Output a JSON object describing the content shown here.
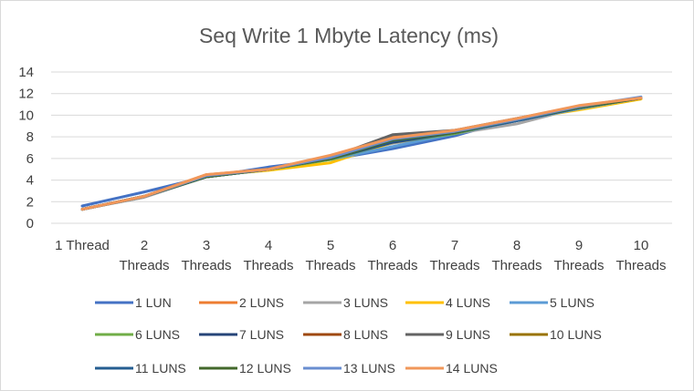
{
  "chart_data": {
    "type": "line",
    "title": "Seq Write 1 Mbyte Latency (ms)",
    "xlabel": "",
    "ylabel": "",
    "ylim": [
      0,
      14
    ],
    "yticks": [
      0,
      2,
      4,
      6,
      8,
      10,
      12,
      14
    ],
    "grid": true,
    "legend_position": "bottom",
    "categories": [
      [
        "1 Thread"
      ],
      [
        "2",
        "Threads"
      ],
      [
        "3",
        "Threads"
      ],
      [
        "4",
        "Threads"
      ],
      [
        "5",
        "Threads"
      ],
      [
        "6",
        "Threads"
      ],
      [
        "7",
        "Threads"
      ],
      [
        "8",
        "Threads"
      ],
      [
        "9",
        "Threads"
      ],
      [
        "10",
        "Threads"
      ]
    ],
    "series": [
      {
        "name": "1 LUN",
        "color": "#4472C4",
        "values": [
          1.6,
          2.9,
          4.3,
          5.2,
          5.9,
          6.9,
          8.1,
          9.7,
          10.8,
          11.6
        ]
      },
      {
        "name": "2 LUNS",
        "color": "#ED7D31",
        "values": [
          1.3,
          2.5,
          4.5,
          5.0,
          6.2,
          8.0,
          8.6,
          9.6,
          10.8,
          11.6
        ]
      },
      {
        "name": "3 LUNS",
        "color": "#A5A5A5",
        "values": [
          1.3,
          2.4,
          4.3,
          5.0,
          6.0,
          7.4,
          8.3,
          9.2,
          10.7,
          11.6
        ]
      },
      {
        "name": "4 LUNS",
        "color": "#FFC000",
        "values": [
          1.3,
          2.5,
          4.4,
          4.9,
          5.6,
          7.5,
          8.4,
          9.6,
          10.5,
          11.5
        ]
      },
      {
        "name": "5 LUNS",
        "color": "#5B9BD5",
        "values": [
          1.3,
          2.5,
          4.3,
          5.0,
          5.9,
          7.1,
          8.3,
          9.5,
          10.6,
          11.6
        ]
      },
      {
        "name": "6 LUNS",
        "color": "#70AD47",
        "values": [
          1.3,
          2.5,
          4.3,
          5.0,
          5.9,
          7.5,
          8.3,
          9.6,
          10.7,
          11.6
        ]
      },
      {
        "name": "7 LUNS",
        "color": "#264478",
        "values": [
          1.3,
          2.5,
          4.3,
          5.0,
          6.0,
          7.5,
          8.4,
          9.5,
          10.7,
          11.6
        ]
      },
      {
        "name": "8 LUNS",
        "color": "#9E480E",
        "values": [
          1.3,
          2.5,
          4.4,
          5.0,
          6.1,
          7.9,
          8.4,
          9.6,
          10.8,
          11.6
        ]
      },
      {
        "name": "9 LUNS",
        "color": "#636363",
        "values": [
          1.3,
          2.5,
          4.4,
          5.0,
          6.1,
          8.2,
          8.6,
          9.7,
          10.8,
          11.6
        ]
      },
      {
        "name": "10 LUNS",
        "color": "#997300",
        "values": [
          1.3,
          2.5,
          4.4,
          5.0,
          6.0,
          7.7,
          8.4,
          9.6,
          10.8,
          11.6
        ]
      },
      {
        "name": "11 LUNS",
        "color": "#255E91",
        "values": [
          1.3,
          2.5,
          4.3,
          5.0,
          6.0,
          7.6,
          8.4,
          9.5,
          10.7,
          11.6
        ]
      },
      {
        "name": "12 LUNS",
        "color": "#43682B",
        "values": [
          1.3,
          2.5,
          4.3,
          5.0,
          6.0,
          7.7,
          8.4,
          9.6,
          10.7,
          11.6
        ]
      },
      {
        "name": "13 LUNS",
        "color": "#698ED0",
        "values": [
          1.3,
          2.5,
          4.4,
          5.0,
          6.1,
          7.8,
          8.5,
          9.6,
          10.8,
          11.7
        ]
      },
      {
        "name": "14 LUNS",
        "color": "#F1975A",
        "values": [
          1.3,
          2.5,
          4.5,
          5.0,
          6.3,
          7.9,
          8.6,
          9.7,
          10.9,
          11.6
        ]
      }
    ]
  }
}
